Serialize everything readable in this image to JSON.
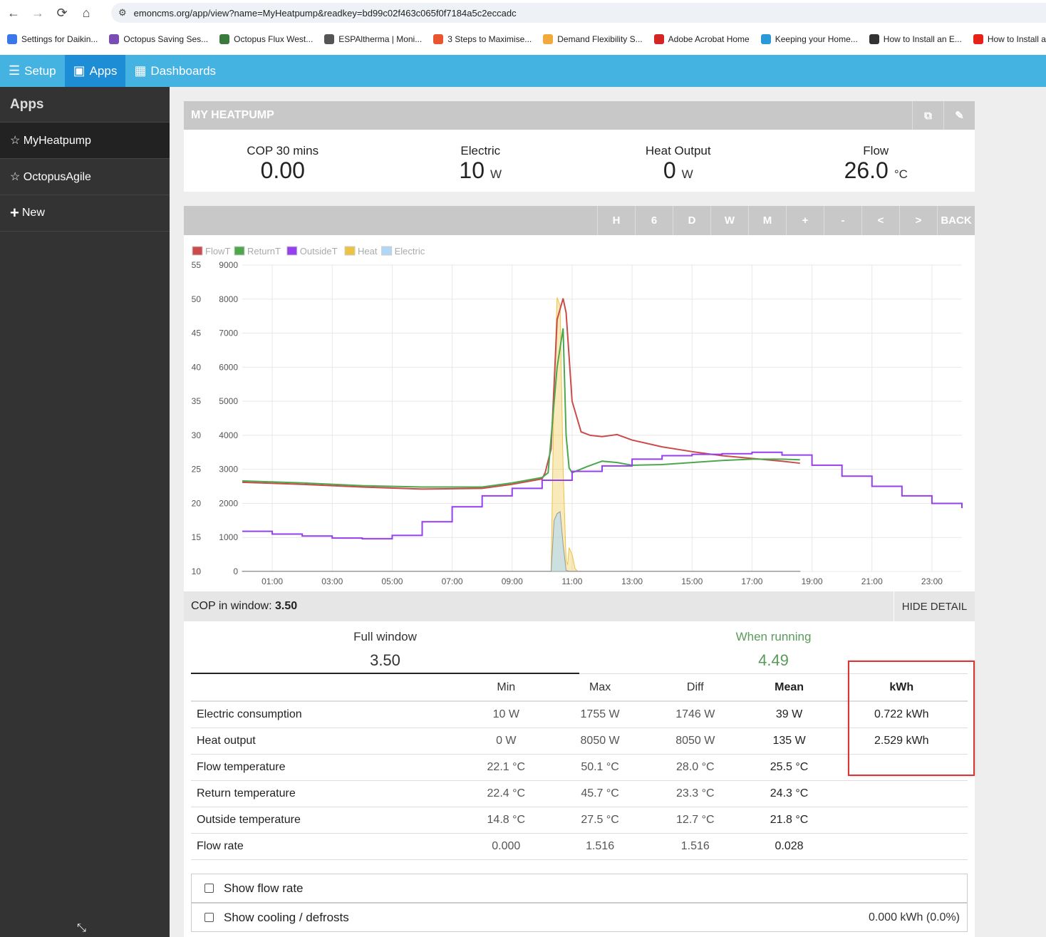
{
  "browser": {
    "url": "emoncms.org/app/view?name=MyHeatpump&readkey=bd99c02f463c065f0f7184a5c2eccadc",
    "bookmarks": [
      {
        "label": "Settings for Daikin...",
        "color": "#3b78e7"
      },
      {
        "label": "Octopus Saving Ses...",
        "color": "#7b4bb6"
      },
      {
        "label": "Octopus Flux West...",
        "color": "#3a7a3a"
      },
      {
        "label": "ESPAltherma | Moni...",
        "color": "#555555"
      },
      {
        "label": "3 Steps to Maximise...",
        "color": "#e8552e"
      },
      {
        "label": "Demand Flexibility S...",
        "color": "#f2a93b"
      },
      {
        "label": "Adobe Acrobat Home",
        "color": "#d42424"
      },
      {
        "label": "Keeping your Home...",
        "color": "#2a9ad6"
      },
      {
        "label": "How to Install an E...",
        "color": "#333333"
      },
      {
        "label": "How to Install a",
        "color": "#e62117"
      }
    ]
  },
  "topnav": {
    "setup": "Setup",
    "apps": "Apps",
    "dashboards": "Dashboards"
  },
  "sidebar": {
    "title": "Apps",
    "items": [
      "☆ MyHeatpump",
      "☆ OctopusAgile",
      "New"
    ]
  },
  "app": {
    "title": "MY HEATPUMP",
    "stats": [
      {
        "label": "COP 30 mins",
        "value": "0.00",
        "unit": ""
      },
      {
        "label": "Electric",
        "value": "10",
        "unit": "W"
      },
      {
        "label": "Heat Output",
        "value": "0",
        "unit": "W"
      },
      {
        "label": "Flow",
        "value": "26.0",
        "unit": "°C"
      }
    ],
    "chart_buttons": [
      "H",
      "6",
      "D",
      "W",
      "M",
      "+",
      "-",
      "<",
      ">",
      "BACK"
    ],
    "cop_window_label": "COP in window:",
    "cop_window_value": "3.50",
    "hide_detail": "HIDE DETAIL",
    "tabs": {
      "full_label": "Full window",
      "full_value": "3.50",
      "run_label": "When running",
      "run_value": "4.49"
    },
    "table": {
      "headers": [
        "",
        "Min",
        "Max",
        "Diff",
        "Mean",
        "kWh"
      ],
      "rows": [
        [
          "Electric consumption",
          "10 W",
          "1755 W",
          "1746 W",
          "39 W",
          "0.722 kWh"
        ],
        [
          "Heat output",
          "0 W",
          "8050 W",
          "8050 W",
          "135 W",
          "2.529 kWh"
        ],
        [
          "Flow temperature",
          "22.1 °C",
          "50.1 °C",
          "28.0 °C",
          "25.5 °C",
          ""
        ],
        [
          "Return temperature",
          "22.4 °C",
          "45.7 °C",
          "23.3 °C",
          "24.3 °C",
          ""
        ],
        [
          "Outside temperature",
          "14.8 °C",
          "27.5 °C",
          "12.7 °C",
          "21.8 °C",
          ""
        ],
        [
          "Flow rate",
          "0.000",
          "1.516",
          "1.516",
          "0.028",
          ""
        ]
      ]
    },
    "options": [
      {
        "label": "Show flow rate",
        "right": ""
      },
      {
        "label": "Show cooling / defrosts",
        "right": "0.000 kWh (0.0%)"
      }
    ]
  },
  "chart_data": {
    "type": "line",
    "legend": [
      {
        "name": "FlowT",
        "color": "#cb4b4b"
      },
      {
        "name": "ReturnT",
        "color": "#4da74d"
      },
      {
        "name": "OutsideT",
        "color": "#9440ed"
      },
      {
        "name": "Heat",
        "color": "#edc240"
      },
      {
        "name": "Electric",
        "color": "#afd8f8"
      }
    ],
    "x_ticks": [
      "01:00",
      "03:00",
      "05:00",
      "07:00",
      "09:00",
      "11:00",
      "13:00",
      "15:00",
      "17:00",
      "19:00",
      "21:00",
      "23:00"
    ],
    "x_tick_hours": [
      1,
      3,
      5,
      7,
      9,
      11,
      13,
      15,
      17,
      19,
      21,
      23
    ],
    "xlim": [
      0,
      24
    ],
    "y_left_ticks": [
      10,
      15,
      20,
      25,
      30,
      35,
      40,
      45,
      50,
      55
    ],
    "y_right_ticks": [
      0,
      1000,
      2000,
      3000,
      4000,
      5000,
      6000,
      7000,
      8000,
      9000
    ],
    "ylim_left": [
      10,
      55
    ],
    "ylim_right": [
      0,
      9000
    ],
    "grid": true,
    "series": [
      {
        "name": "FlowT",
        "axis": "left",
        "x": [
          0,
          2,
          4,
          6,
          8,
          9,
          10,
          10.1,
          10.3,
          10.5,
          10.7,
          10.8,
          11,
          11.3,
          11.6,
          12,
          12.5,
          13,
          14,
          15,
          16,
          17,
          18,
          18.6
        ],
        "y": [
          23.1,
          22.8,
          22.4,
          22.1,
          22.2,
          22.8,
          23.6,
          24.5,
          28,
          47,
          50.1,
          48,
          35,
          30.5,
          30,
          29.8,
          30.1,
          29.3,
          28.3,
          27.6,
          27.0,
          26.6,
          26.2,
          25.9
        ]
      },
      {
        "name": "ReturnT",
        "axis": "left",
        "x": [
          0,
          2,
          4,
          6,
          8,
          9,
          10,
          10.2,
          10.5,
          10.7,
          10.8,
          10.9,
          11,
          11.5,
          12,
          12.5,
          13,
          14,
          15,
          16,
          17,
          18,
          18.6
        ],
        "y": [
          23.3,
          23.0,
          22.6,
          22.4,
          22.4,
          23.0,
          23.8,
          24.5,
          40,
          45.7,
          30,
          25.2,
          24.5,
          25.4,
          26.2,
          26.0,
          25.6,
          25.7,
          26.0,
          26.3,
          26.5,
          26.5,
          26.4
        ]
      },
      {
        "name": "OutsideT",
        "axis": "left",
        "x": [
          0,
          1,
          1,
          2,
          2,
          3,
          3,
          4,
          4,
          5,
          5,
          6,
          6,
          7,
          7,
          8,
          8,
          9,
          9,
          10,
          10,
          11,
          11,
          12,
          12,
          13,
          13,
          14,
          14,
          15,
          15,
          16,
          16,
          17,
          17,
          18,
          18,
          19,
          19,
          20,
          20,
          21,
          21,
          22,
          22,
          23,
          23,
          24,
          24
        ],
        "y": [
          15.9,
          15.9,
          15.5,
          15.5,
          15.2,
          15.2,
          14.9,
          14.9,
          14.8,
          14.8,
          15.3,
          15.3,
          17.3,
          17.3,
          19.5,
          19.5,
          21.1,
          21.1,
          22.2,
          22.2,
          23.4,
          23.4,
          24.7,
          24.7,
          25.5,
          25.5,
          26.5,
          26.5,
          27.0,
          27.0,
          27.2,
          27.2,
          27.3,
          27.3,
          27.5,
          27.5,
          27.1,
          27.1,
          25.6,
          25.6,
          24.0,
          24.0,
          22.5,
          22.5,
          21.1,
          21.1,
          20.0,
          20.0,
          19.3
        ]
      },
      {
        "name": "Heat",
        "axis": "right",
        "x": [
          0,
          10.2,
          10.3,
          10.4,
          10.5,
          10.6,
          10.7,
          10.8,
          10.85,
          10.9,
          11.0,
          11.1,
          11.2,
          18.6
        ],
        "y": [
          0,
          0,
          0,
          5500,
          8050,
          7800,
          3000,
          300,
          200,
          700,
          500,
          80,
          0,
          0
        ]
      },
      {
        "name": "Electric",
        "axis": "right",
        "x": [
          0,
          10.2,
          10.3,
          10.4,
          10.5,
          10.6,
          10.7,
          10.8,
          10.9,
          11.0,
          18.6
        ],
        "y": [
          10,
          10,
          10,
          1500,
          1700,
          1755,
          800,
          30,
          10,
          10,
          10
        ]
      }
    ]
  }
}
